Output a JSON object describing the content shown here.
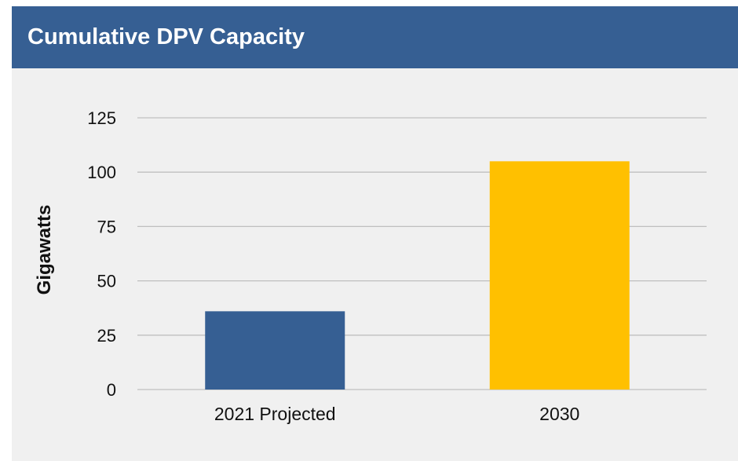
{
  "header": {
    "title": "Cumulative DPV Capacity"
  },
  "colors": {
    "header_bg": "#365f93",
    "panel_bg": "#f0f0f0",
    "gridline": "#bfbfbf"
  },
  "chart_data": {
    "type": "bar",
    "title": "Cumulative DPV Capacity",
    "xlabel": "",
    "ylabel": "Gigawatts",
    "ylim": [
      0,
      125
    ],
    "yticks": [
      0,
      25,
      50,
      75,
      100,
      125
    ],
    "grid": true,
    "legend": "none",
    "categories": [
      "2021 Projected",
      "2030"
    ],
    "values": [
      36,
      105
    ],
    "bar_colors": [
      "#365f93",
      "#ffc000"
    ]
  }
}
